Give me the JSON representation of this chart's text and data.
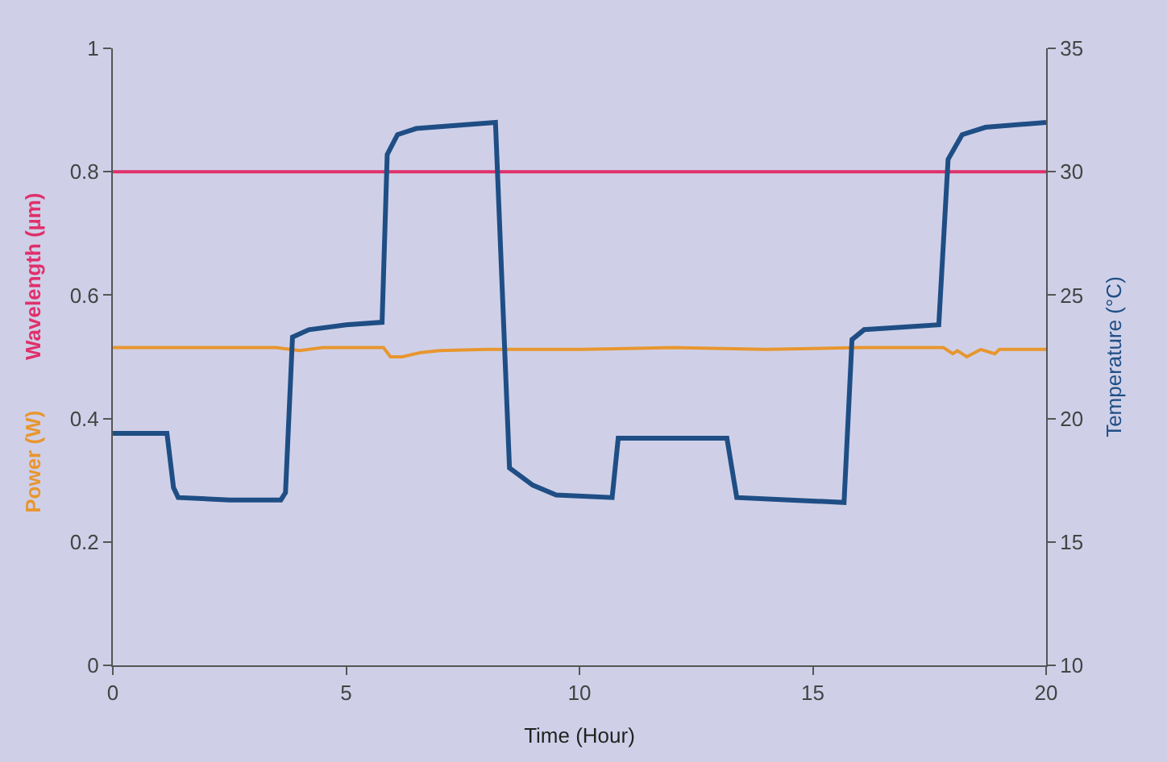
{
  "chart_data": {
    "type": "line",
    "xlabel": "Time (Hour)",
    "y2label": "Temperature (°C)",
    "xlim": [
      0,
      20
    ],
    "xticks": [
      0,
      5,
      10,
      15,
      20
    ],
    "ylim": [
      0,
      1
    ],
    "yticks": [
      0,
      0.2,
      0.4,
      0.6,
      0.8,
      1
    ],
    "y2lim": [
      10,
      35
    ],
    "y2ticks": [
      10,
      15,
      20,
      25,
      30,
      35
    ],
    "grid": false,
    "legend": false,
    "marker": "none",
    "line_style": "solid",
    "series": [
      {
        "name": "Power (W)",
        "color": "#e8962f",
        "x": [
          0,
          3.5,
          4,
          4.5,
          5.8,
          5.95,
          6.2,
          6.6,
          7,
          8,
          9,
          10,
          12,
          14,
          16,
          17.8,
          18,
          18.1,
          18.3,
          18.6,
          18.9,
          19,
          19.2,
          20
        ],
        "values": [
          0.515,
          0.515,
          0.51,
          0.515,
          0.515,
          0.5,
          0.5,
          0.507,
          0.51,
          0.512,
          0.512,
          0.512,
          0.515,
          0.512,
          0.515,
          0.515,
          0.505,
          0.51,
          0.5,
          0.512,
          0.505,
          0.512,
          0.512,
          0.512
        ]
      },
      {
        "name": "Wavelength (µm)",
        "color": "#e0306a",
        "x": [
          0,
          20
        ],
        "values": [
          0.8,
          0.8
        ]
      },
      {
        "color": "#1f4e85",
        "axis": "y2",
        "x": [
          0,
          1.16,
          1.3,
          1.4,
          2.5,
          3.6,
          3.7,
          3.85,
          4.2,
          5,
          5.77,
          5.88,
          6.1,
          6.5,
          8.2,
          8.5,
          9,
          9.5,
          10.7,
          10.83,
          13.16,
          13.37,
          14.5,
          15.67,
          15.84,
          16.1,
          17.7,
          17.9,
          18.2,
          18.7,
          20
        ],
        "values": [
          19.4,
          19.4,
          17.2,
          16.8,
          16.7,
          16.7,
          17,
          23.3,
          23.6,
          23.8,
          23.9,
          30.7,
          31.5,
          31.75,
          32,
          18,
          17.3,
          16.9,
          16.8,
          19.2,
          19.2,
          16.8,
          16.7,
          16.6,
          23.2,
          23.6,
          23.8,
          30.5,
          31.5,
          31.8,
          32
        ]
      }
    ]
  }
}
